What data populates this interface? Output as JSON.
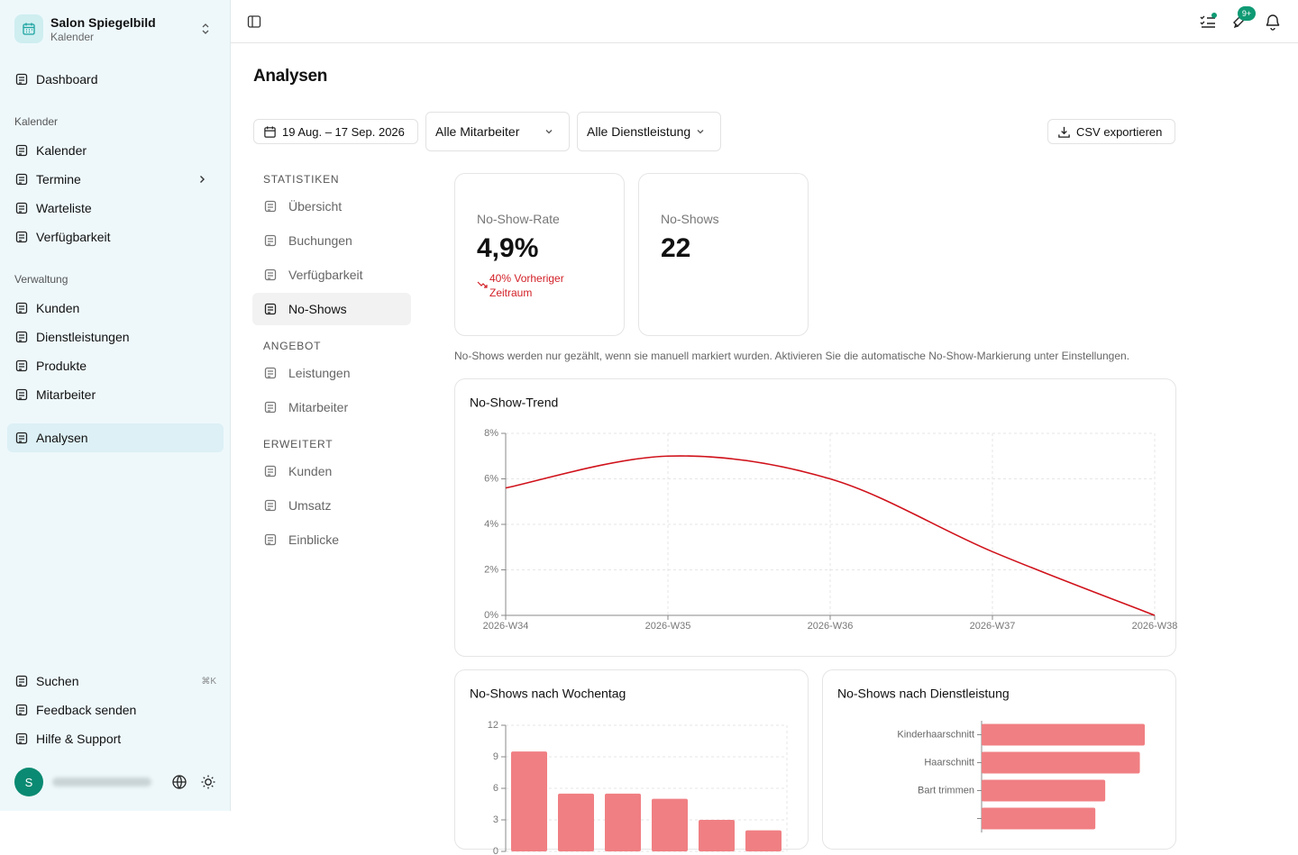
{
  "sidebar": {
    "workspace": {
      "name": "Salon Spiegelbild",
      "subtitle": "Kalender"
    },
    "main": [
      "Dashboard"
    ],
    "sections": [
      {
        "title": "Kalender",
        "items": [
          "Kalender",
          "Termine",
          "Warteliste",
          "Verfügbarkeit"
        ]
      },
      {
        "title": "Verwaltung",
        "items": [
          "Kunden",
          "Dienstleistungen",
          "Produkte",
          "Mitarbeiter"
        ]
      }
    ],
    "tools": [
      "Analysen"
    ],
    "footer": [
      "Suchen",
      "Feedback senden",
      "Hilfe & Support"
    ],
    "shortcut": "⌘K",
    "avatar": "S"
  },
  "header": {
    "notification_badge": "9+"
  },
  "page": {
    "title": "Analysen",
    "date_range": "19 Aug. – 17 Sep. 2026",
    "staff_filter": "Alle Mitarbeiter",
    "service_filter": "Alle Dienstleistung",
    "export_button": "CSV exportieren"
  },
  "subnav": [
    {
      "title": "STATISTIKEN",
      "items": [
        "Übersicht",
        "Buchungen",
        "Verfügbarkeit",
        "No-Shows"
      ],
      "active": 3
    },
    {
      "title": "ANGEBOT",
      "items": [
        "Leistungen",
        "Mitarbeiter"
      ]
    },
    {
      "title": "ERWEITERT",
      "items": [
        "Kunden",
        "Umsatz",
        "Einblicke"
      ]
    }
  ],
  "kpis": [
    {
      "label": "No-Show-Rate",
      "value": "4,9%",
      "change": "40% Vorheriger Zeitraum"
    },
    {
      "label": "No-Shows",
      "value": "22"
    }
  ],
  "notice": "No-Shows werden nur gezählt, wenn sie manuell markiert wurden. Aktivieren Sie die automatische No-Show-Markierung unter Einstellungen.",
  "chart_data": [
    {
      "type": "line",
      "title": "No-Show-Trend",
      "categories": [
        "2026-W34",
        "2026-W35",
        "2026-W36",
        "2026-W37",
        "2026-W38"
      ],
      "values": [
        5.6,
        7.0,
        6.0,
        2.8,
        0
      ],
      "color": "#d0121b",
      "ylim": [
        0,
        8
      ],
      "yticks": [
        {
          "value": 0,
          "label": "0%"
        },
        {
          "value": 2,
          "label": "2%"
        },
        {
          "value": 4,
          "label": "4%"
        },
        {
          "value": 6,
          "label": "6%"
        },
        {
          "value": 8,
          "label": "8%"
        }
      ],
      "grid": true
    },
    {
      "type": "bar",
      "title": "No-Shows nach Wochentag",
      "categories": [
        null,
        null,
        null,
        null,
        null,
        null
      ],
      "values": [
        9.5,
        5.5,
        5.5,
        5,
        3,
        2
      ],
      "color": "#f07f83",
      "ylim": [
        0,
        12
      ],
      "yticks": [
        0,
        3,
        6,
        9,
        12
      ],
      "grid": true
    },
    {
      "type": "hbar",
      "title": "No-Shows nach Dienstleistung",
      "categories": [
        "Kinderhaarschnitt",
        "Haarschnitt",
        "Bart trimmen",
        null
      ],
      "values": [
        6.6,
        6.4,
        5.0,
        4.6
      ],
      "color": "#f07f83",
      "xlim": [
        0,
        7
      ]
    }
  ]
}
